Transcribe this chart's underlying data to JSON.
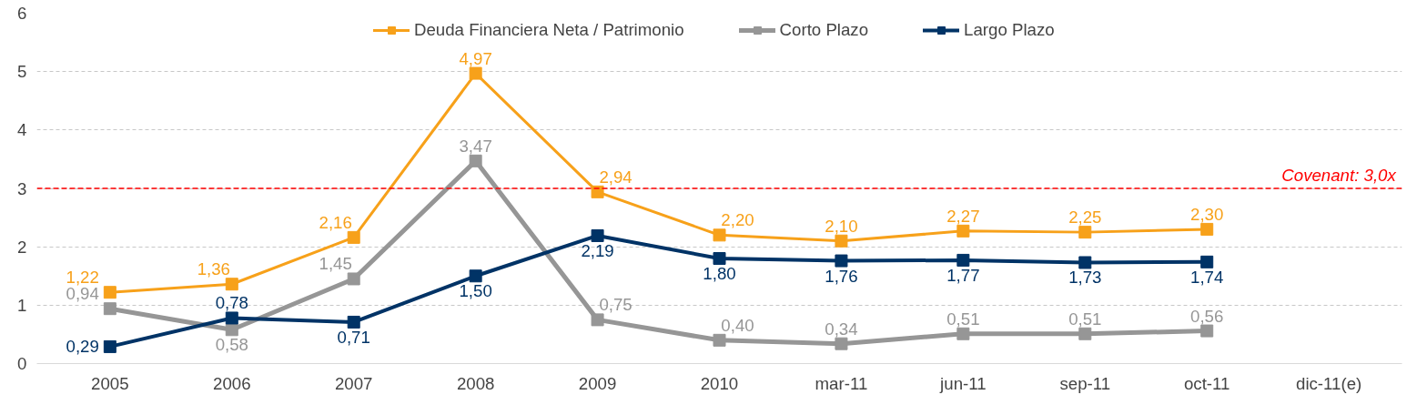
{
  "chart_data": {
    "type": "line",
    "categories": [
      "2005",
      "2006",
      "2007",
      "2008",
      "2009",
      "2010",
      "mar-11",
      "jun-11",
      "sep-11",
      "oct-11",
      "dic-11(e)"
    ],
    "series": [
      {
        "name": "Deuda Financiera Neta / Patrimonio",
        "color": "#f7a11a",
        "values": [
          1.22,
          1.36,
          2.16,
          4.97,
          2.94,
          2.2,
          2.1,
          2.27,
          2.25,
          2.3,
          null
        ],
        "value_labels": [
          "1,22",
          "1,36",
          "2,16",
          "4,97",
          "2,94",
          "2,20",
          "2,10",
          "2,27",
          "2,25",
          "2,30",
          null
        ]
      },
      {
        "name": "Corto Plazo",
        "color": "#969696",
        "values": [
          0.94,
          0.58,
          1.45,
          3.47,
          0.75,
          0.4,
          0.34,
          0.51,
          0.51,
          0.56,
          null
        ],
        "value_labels": [
          "0,94",
          "0,58",
          "1,45",
          "3,47",
          "0,75",
          "0,40",
          "0,34",
          "0,51",
          "0,51",
          "0,56",
          null
        ]
      },
      {
        "name": "Largo Plazo",
        "color": "#003366",
        "values": [
          0.29,
          0.78,
          0.71,
          1.5,
          2.19,
          1.8,
          1.76,
          1.77,
          1.73,
          1.74,
          null
        ],
        "value_labels": [
          "0,29",
          "0,78",
          "0,71",
          "1,50",
          "2,19",
          "1,80",
          "1,76",
          "1,77",
          "1,73",
          "1,74",
          null
        ]
      }
    ],
    "ylim": [
      0,
      6
    ],
    "yticks": [
      0,
      1,
      2,
      3,
      4,
      5,
      6
    ],
    "grid": "y",
    "legend": "top",
    "marker": "square",
    "ref_lines": [
      {
        "axis": "y",
        "value": 3,
        "label": "Covenant: 3,0x",
        "color": "#ff0000",
        "line_style": "dashed"
      }
    ]
  }
}
